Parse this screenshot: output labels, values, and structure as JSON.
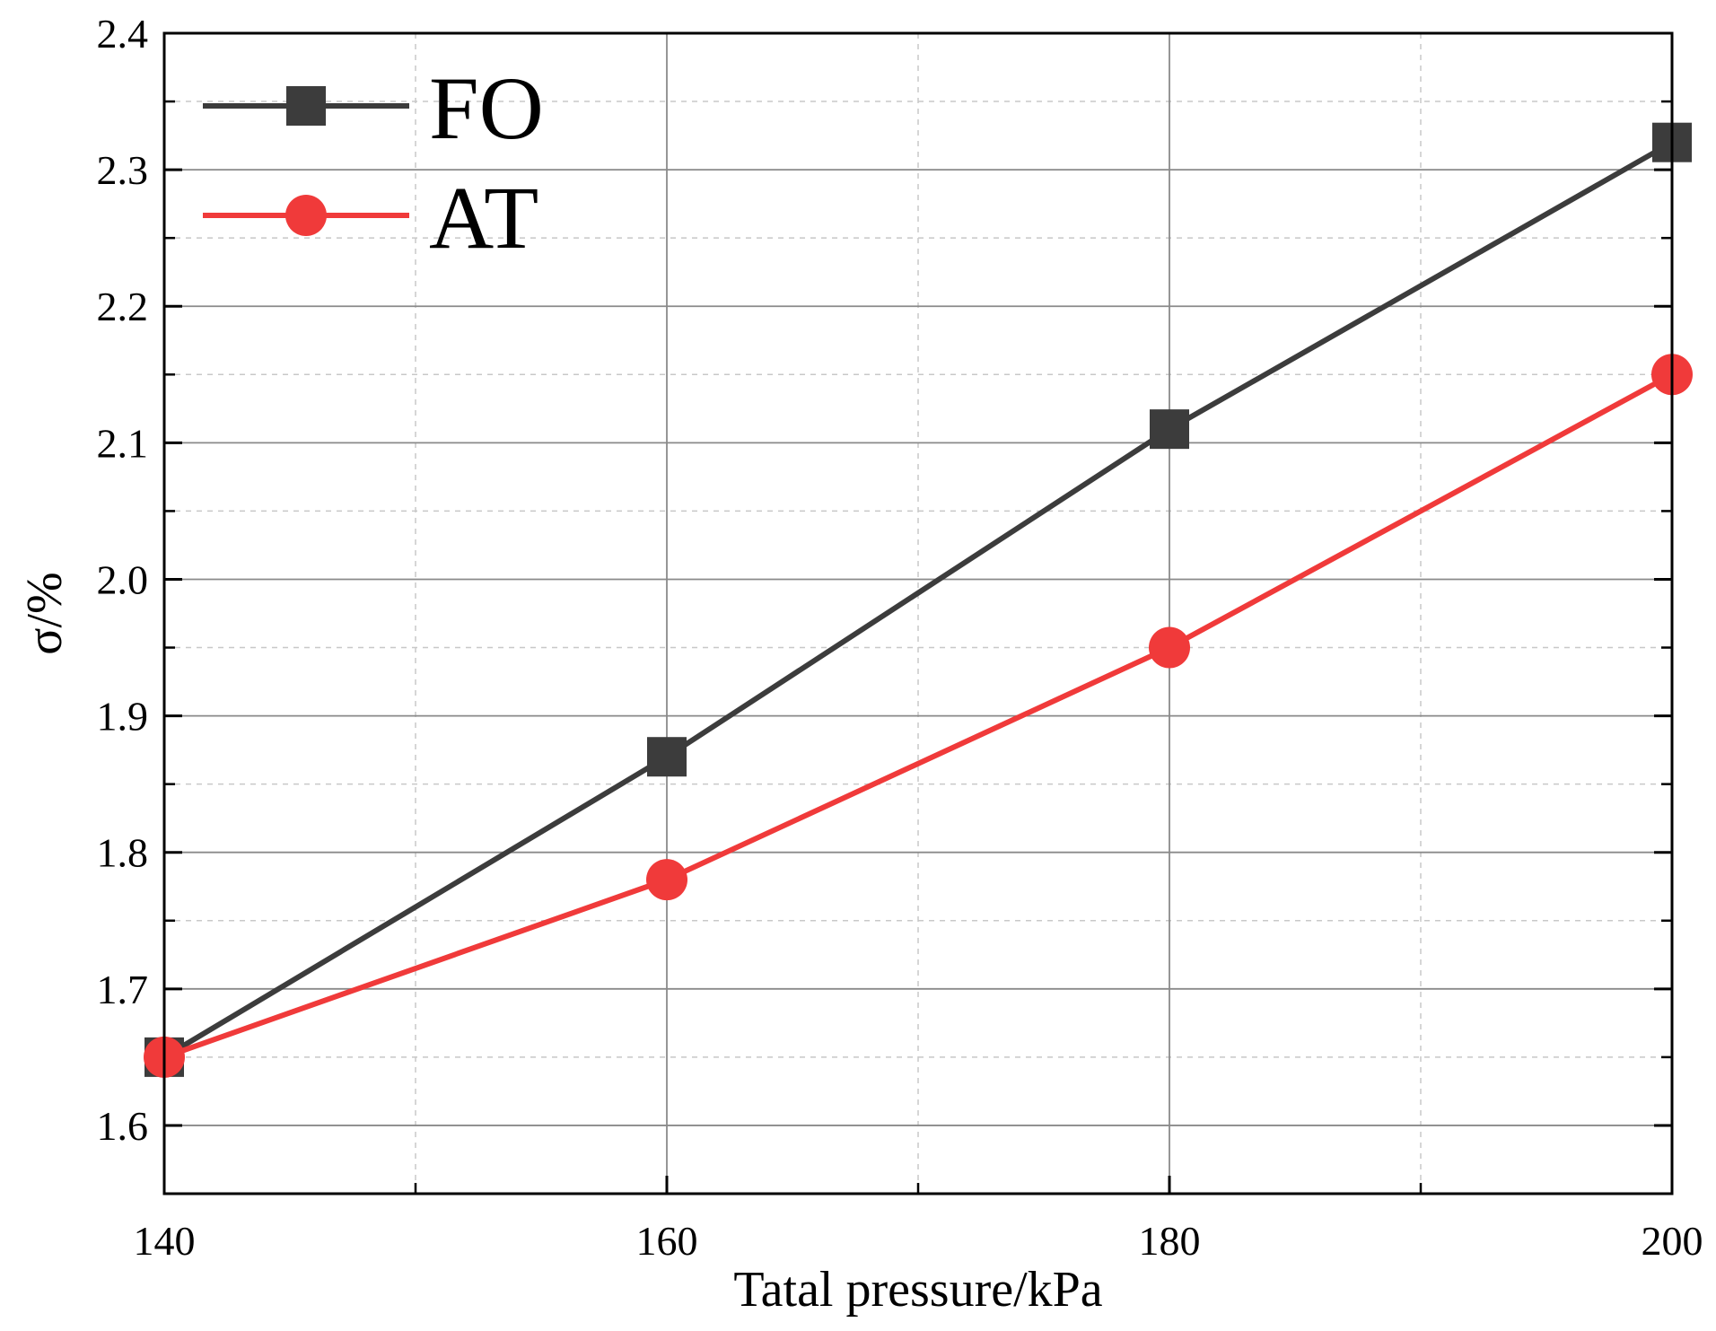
{
  "chart_data": {
    "type": "line",
    "title": "",
    "xlabel": "Tatal pressure/kPa",
    "ylabel": "σ/%",
    "x": [
      140,
      160,
      180,
      200
    ],
    "xlim": [
      140,
      200
    ],
    "ylim": [
      1.55,
      2.4
    ],
    "xticks": [
      140,
      160,
      180,
      200
    ],
    "xtick_labels": [
      "140",
      "160",
      "180",
      "200"
    ],
    "yticks": [
      1.6,
      1.7,
      1.8,
      1.9,
      2.0,
      2.1,
      2.2,
      2.3,
      2.4
    ],
    "ytick_labels": [
      "1.6",
      "1.7",
      "1.8",
      "1.9",
      "2.0",
      "2.1",
      "2.2",
      "2.3",
      "2.4"
    ],
    "grid": true,
    "legend_position": "top-left",
    "series": [
      {
        "name": "FO",
        "values": [
          1.65,
          1.87,
          2.11,
          2.32
        ],
        "color": "#3c3c3c",
        "marker": "square"
      },
      {
        "name": "AT",
        "values": [
          1.65,
          1.78,
          1.95,
          2.15
        ],
        "color": "#f03a3a",
        "marker": "circle"
      }
    ]
  }
}
